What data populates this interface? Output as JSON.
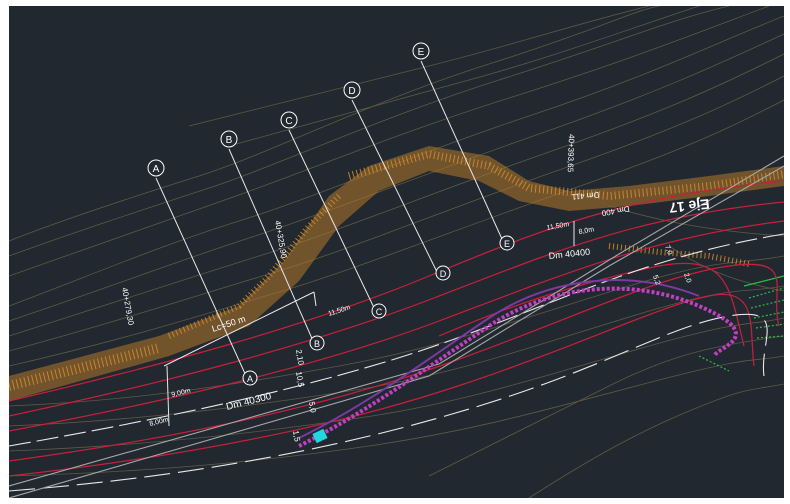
{
  "viewport": {
    "background": "#212830",
    "frame_color": "#ffffff"
  },
  "colors": {
    "contour": "#5e5a44",
    "slope_fill": "#b5782a",
    "road_edge": "#c8203a",
    "road_centerline": "#e8e8e8",
    "section_line": "#e8e8e8",
    "green_hatch": "#27c04a",
    "magenta": "#c040c0",
    "cyan": "#22d8e0",
    "text": "#ffffff"
  },
  "section_markers": {
    "top": [
      "A",
      "B",
      "C",
      "D",
      "E"
    ],
    "road": [
      "A",
      "B",
      "C",
      "D",
      "E"
    ]
  },
  "stations": {
    "a": "40+279,30",
    "b": "40+325,90",
    "c": "40+393,65"
  },
  "dimensions": {
    "lc": "Lc=50 m",
    "w1": "9,00m",
    "w2": "8,00m",
    "w3": "11,50m",
    "w4": "11,50m",
    "w5": "8,0m",
    "v1": "2,10",
    "v2": "10,5",
    "v3": "5,0",
    "v4": "1,5",
    "v5": "7,0",
    "v6": "5,2",
    "v7": "2,0",
    "dm1": "Dm 40300",
    "dm2": "Dm 40400",
    "dm3": "Dm 400",
    "dm4": "Dm 411",
    "eje": "Eje 17"
  }
}
